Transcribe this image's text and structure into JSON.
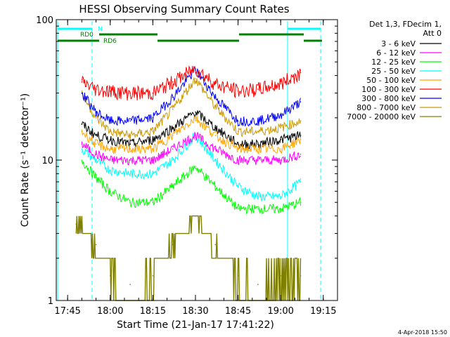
{
  "chart_data": {
    "type": "line",
    "title": "HESSI Observing Summary Count Rates",
    "xlabel": "Start Time (21-Jan-17 17:41:22)",
    "ylabel": "Count Rate (s⁻¹ detector⁻¹)",
    "y_scale": "log",
    "ylim": [
      1,
      100
    ],
    "xlim": [
      "17:41",
      "19:20"
    ],
    "x_tick_labels": [
      "17:45",
      "18:00",
      "18:15",
      "18:30",
      "18:45",
      "19:00",
      "19:15"
    ],
    "y_tick_labels": [
      "1",
      "10",
      "100"
    ],
    "legend_title": [
      "Det 1,3, FDecim 1,",
      "Att 0"
    ],
    "legend_position": "right",
    "series": [
      {
        "name": "3 - 6 keV",
        "color": "#000000",
        "x": [
          "17:50",
          "17:55",
          "18:00",
          "18:07",
          "18:15",
          "18:22",
          "18:30",
          "18:37",
          "18:45",
          "18:52",
          "19:00",
          "19:07"
        ],
        "values": [
          18,
          15,
          14,
          13,
          14,
          17,
          22,
          17,
          13,
          13,
          14,
          15
        ]
      },
      {
        "name": "6 - 12 keV",
        "color": "#ff00ff",
        "x": [
          "17:50",
          "17:55",
          "18:00",
          "18:07",
          "18:15",
          "18:22",
          "18:30",
          "18:37",
          "18:45",
          "18:52",
          "19:00",
          "19:07"
        ],
        "values": [
          13,
          11,
          10,
          10,
          10,
          12,
          15,
          12,
          10,
          10,
          10,
          11
        ]
      },
      {
        "name": "12 - 25 keV",
        "color": "#00ff00",
        "x": [
          "17:50",
          "17:55",
          "18:00",
          "18:07",
          "18:15",
          "18:22",
          "18:30",
          "18:37",
          "18:45",
          "18:52",
          "19:00",
          "19:07"
        ],
        "values": [
          10,
          7.5,
          6,
          5,
          5,
          6.5,
          9,
          6.5,
          4.5,
          4.5,
          4.5,
          5
        ]
      },
      {
        "name": "25 - 50 keV",
        "color": "#00ffff",
        "x": [
          "17:50",
          "17:55",
          "18:00",
          "18:07",
          "18:15",
          "18:22",
          "18:30",
          "18:37",
          "18:45",
          "18:52",
          "19:00",
          "19:07"
        ],
        "values": [
          12,
          10,
          8.5,
          8,
          8,
          10,
          15,
          10,
          6.5,
          5.5,
          5.5,
          7
        ]
      },
      {
        "name": "50 - 100 keV",
        "color": "#ffa500",
        "x": [
          "17:50",
          "17:55",
          "18:00",
          "18:07",
          "18:15",
          "18:22",
          "18:30",
          "18:37",
          "18:45",
          "18:52",
          "19:00",
          "19:07"
        ],
        "values": [
          16,
          13,
          12,
          12,
          12,
          15,
          20,
          15,
          12,
          12,
          12,
          14
        ]
      },
      {
        "name": "100 - 300 keV",
        "color": "#ff0000",
        "x": [
          "17:50",
          "17:55",
          "18:00",
          "18:07",
          "18:15",
          "18:22",
          "18:30",
          "18:37",
          "18:45",
          "18:52",
          "19:00",
          "19:07"
        ],
        "values": [
          36,
          32,
          31,
          30,
          30,
          36,
          45,
          35,
          31,
          32,
          35,
          42
        ]
      },
      {
        "name": "300 - 800 keV",
        "color": "#0000ff",
        "x": [
          "17:50",
          "17:55",
          "18:00",
          "18:07",
          "18:15",
          "18:22",
          "18:30",
          "18:37",
          "18:45",
          "18:52",
          "19:00",
          "19:07"
        ],
        "values": [
          30,
          22,
          19,
          19,
          20,
          28,
          44,
          28,
          19,
          19,
          21,
          26
        ]
      },
      {
        "name": "800 - 7000 keV",
        "color": "#cc9900",
        "x": [
          "17:50",
          "17:55",
          "18:00",
          "18:07",
          "18:15",
          "18:22",
          "18:30",
          "18:37",
          "18:45",
          "18:52",
          "19:00",
          "19:07"
        ],
        "values": [
          30,
          20,
          16,
          15,
          16,
          23,
          38,
          24,
          16,
          16,
          17,
          19
        ]
      },
      {
        "name": "7000 - 20000 keV",
        "color": "#808000",
        "x": [
          "17:48",
          "17:55",
          "18:00",
          "18:07",
          "18:15",
          "18:22",
          "18:30",
          "18:37",
          "18:45",
          "18:52",
          "19:00",
          "19:07"
        ],
        "values": [
          3.5,
          2.5,
          1.5,
          1.3,
          1.5,
          2.5,
          4.0,
          2.5,
          1.5,
          1.3,
          1.5,
          1.5
        ]
      }
    ],
    "annotations": [
      {
        "text": "N",
        "color": "#00ffff",
        "x": "17:59"
      },
      {
        "text": "RD0",
        "color": "#008000",
        "x": "17:50"
      },
      {
        "text": "RD6",
        "color": "#008000",
        "x": "18:00"
      }
    ],
    "timestamp": "4-Apr-2018 15:50"
  }
}
